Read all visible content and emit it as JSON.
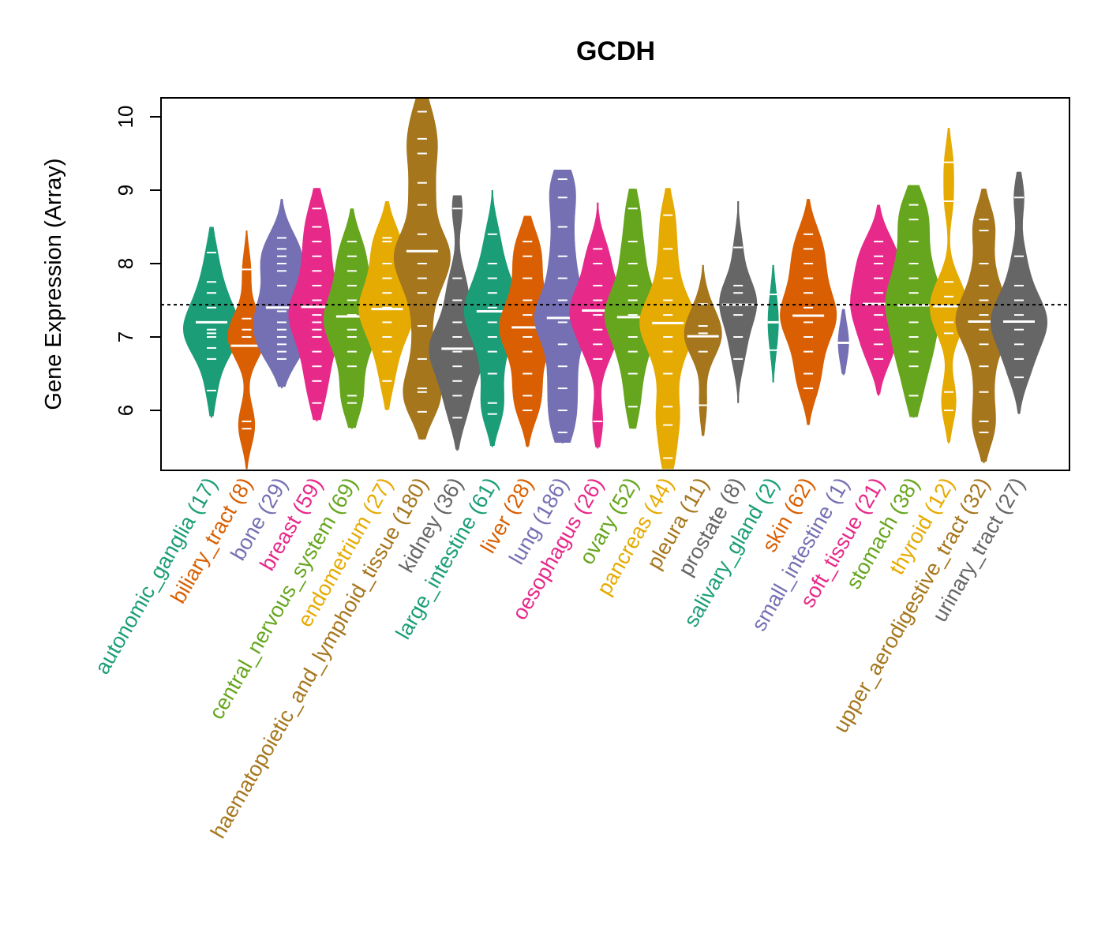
{
  "chart_data": {
    "type": "violin",
    "title": "GCDH",
    "xlabel": "",
    "ylabel": "Gene Expression (Array)",
    "ylim": [
      5.2,
      10.25
    ],
    "yticks": [
      6,
      7,
      8,
      9,
      10
    ],
    "reference_line": 7.44,
    "grid": false,
    "legend": "none",
    "categories": [
      {
        "name": "autonomic_ganglia",
        "n": 17,
        "color": "#1b9e77",
        "min": 5.9,
        "max": 8.5,
        "median": 7.2,
        "q_points": [
          6.27,
          6.7,
          6.85,
          7.0,
          7.05,
          7.1,
          7.4,
          7.6,
          7.75,
          8.15
        ]
      },
      {
        "name": "biliary_tract",
        "n": 8,
        "color": "#d95f02",
        "min": 5.2,
        "max": 8.45,
        "median": 6.88,
        "q_points": [
          5.75,
          5.85,
          7.0,
          7.1,
          7.25,
          7.92
        ]
      },
      {
        "name": "bone",
        "n": 29,
        "color": "#7570b3",
        "min": 6.3,
        "max": 8.88,
        "median": 7.4,
        "q_points": [
          6.7,
          6.8,
          6.9,
          7.0,
          7.1,
          7.2,
          7.35,
          7.7,
          7.9,
          8.0,
          8.1,
          8.2,
          8.35
        ]
      },
      {
        "name": "breast",
        "n": 59,
        "color": "#e7298a",
        "min": 5.85,
        "max": 9.03,
        "median": 7.41,
        "q_points": [
          6.1,
          6.4,
          6.6,
          6.8,
          7.0,
          7.1,
          7.2,
          7.3,
          7.5,
          7.7,
          7.9,
          8.1,
          8.3,
          8.5,
          8.75
        ]
      },
      {
        "name": "central_nervous_system",
        "n": 69,
        "color": "#66a61e",
        "min": 5.75,
        "max": 8.75,
        "median": 7.28,
        "q_points": [
          6.1,
          6.2,
          6.6,
          6.8,
          7.0,
          7.1,
          7.3,
          7.5,
          7.7,
          7.9,
          8.1,
          8.3
        ]
      },
      {
        "name": "endometrium",
        "n": 27,
        "color": "#e6ab02",
        "min": 6.0,
        "max": 8.85,
        "median": 7.38,
        "q_points": [
          6.4,
          6.8,
          7.0,
          7.2,
          7.4,
          7.6,
          7.8,
          8.0,
          8.3,
          8.35
        ]
      },
      {
        "name": "haematopoietic_and_lymphoid_tissue",
        "n": 180,
        "color": "#a6761d",
        "min": 5.6,
        "max": 10.25,
        "median": 8.17,
        "q_points": [
          5.98,
          6.25,
          6.3,
          6.7,
          7.15,
          7.6,
          7.8,
          8.0,
          8.4,
          8.8,
          9.1,
          9.5,
          9.7,
          10.07
        ]
      },
      {
        "name": "kidney",
        "n": 36,
        "color": "#666666",
        "min": 5.45,
        "max": 8.93,
        "median": 6.84,
        "q_points": [
          5.9,
          6.2,
          6.4,
          6.6,
          6.8,
          7.0,
          7.2,
          7.5,
          7.8,
          8.75
        ]
      },
      {
        "name": "large_intestine",
        "n": 61,
        "color": "#1b9e77",
        "min": 5.5,
        "max": 9.0,
        "median": 7.35,
        "q_points": [
          5.95,
          6.1,
          6.5,
          6.8,
          7.0,
          7.2,
          7.4,
          7.6,
          7.8,
          8.0,
          8.4
        ]
      },
      {
        "name": "liver",
        "n": 28,
        "color": "#d95f02",
        "min": 5.5,
        "max": 8.65,
        "median": 7.13,
        "q_points": [
          6.0,
          6.2,
          6.5,
          6.8,
          7.0,
          7.3,
          7.5,
          7.8,
          8.1,
          8.3
        ]
      },
      {
        "name": "lung",
        "n": 186,
        "color": "#7570b3",
        "min": 5.55,
        "max": 9.28,
        "median": 7.26,
        "q_points": [
          5.7,
          6.0,
          6.3,
          6.6,
          6.9,
          7.2,
          7.5,
          7.8,
          8.1,
          8.5,
          8.9,
          9.15
        ]
      },
      {
        "name": "oesophagus",
        "n": 26,
        "color": "#e7298a",
        "min": 5.48,
        "max": 8.83,
        "median": 7.36,
        "q_points": [
          5.85,
          6.7,
          6.9,
          7.1,
          7.3,
          7.5,
          7.7,
          8.0,
          8.2
        ]
      },
      {
        "name": "ovary",
        "n": 52,
        "color": "#66a61e",
        "min": 5.75,
        "max": 9.02,
        "median": 7.27,
        "q_points": [
          6.05,
          6.5,
          6.8,
          7.0,
          7.3,
          7.5,
          7.7,
          8.0,
          8.3,
          8.75
        ]
      },
      {
        "name": "pancreas",
        "n": 44,
        "color": "#e6ab02",
        "min": 5.2,
        "max": 9.03,
        "median": 7.19,
        "q_points": [
          5.35,
          5.8,
          6.05,
          6.5,
          6.8,
          7.0,
          7.3,
          7.5,
          7.8,
          8.2,
          8.66
        ]
      },
      {
        "name": "pleura",
        "n": 11,
        "color": "#a6761d",
        "min": 5.65,
        "max": 7.98,
        "median": 7.01,
        "q_points": [
          6.07,
          6.8,
          7.05,
          7.15,
          7.45
        ]
      },
      {
        "name": "prostate",
        "n": 8,
        "color": "#666666",
        "min": 6.1,
        "max": 8.85,
        "median": 7.44,
        "q_points": [
          6.7,
          7.0,
          7.3,
          7.6,
          7.7,
          8.22
        ]
      },
      {
        "name": "salivary_gland",
        "n": 2,
        "color": "#1b9e77",
        "min": 6.38,
        "max": 7.98,
        "median": 7.2,
        "q_points": [
          6.82,
          7.58
        ]
      },
      {
        "name": "skin",
        "n": 62,
        "color": "#d95f02",
        "min": 5.8,
        "max": 8.88,
        "median": 7.29,
        "q_points": [
          6.3,
          6.5,
          6.8,
          7.0,
          7.2,
          7.4,
          7.6,
          7.8,
          8.0,
          8.2,
          8.4
        ]
      },
      {
        "name": "small_intestine",
        "n": 1,
        "color": "#7570b3",
        "min": 6.48,
        "max": 7.38,
        "median": 6.92,
        "q_points": [
          6.92
        ]
      },
      {
        "name": "soft_tissue",
        "n": 21,
        "color": "#e7298a",
        "min": 6.2,
        "max": 8.8,
        "median": 7.45,
        "q_points": [
          6.7,
          6.9,
          7.1,
          7.3,
          7.6,
          7.8,
          8.0,
          8.1,
          8.3
        ]
      },
      {
        "name": "stomach",
        "n": 38,
        "color": "#66a61e",
        "min": 5.9,
        "max": 9.07,
        "median": 7.43,
        "q_points": [
          6.2,
          6.6,
          6.8,
          7.0,
          7.2,
          7.6,
          7.8,
          8.0,
          8.3,
          8.6,
          8.8
        ]
      },
      {
        "name": "thyroid",
        "n": 12,
        "color": "#e6ab02",
        "min": 5.55,
        "max": 9.85,
        "median": 7.42,
        "q_points": [
          6.0,
          6.25,
          7.05,
          7.2,
          7.55,
          7.75,
          8.85,
          9.38
        ]
      },
      {
        "name": "upper_aerodigestive_tract",
        "n": 32,
        "color": "#a6761d",
        "min": 5.28,
        "max": 9.02,
        "median": 7.21,
        "q_points": [
          5.7,
          5.85,
          6.25,
          6.6,
          6.9,
          7.1,
          7.3,
          7.5,
          7.7,
          8.0,
          8.45,
          8.6
        ]
      },
      {
        "name": "urinary_tract",
        "n": 27,
        "color": "#666666",
        "min": 5.95,
        "max": 9.25,
        "median": 7.21,
        "q_points": [
          6.45,
          6.7,
          6.9,
          7.1,
          7.3,
          7.5,
          7.7,
          8.1,
          8.9
        ]
      }
    ]
  }
}
